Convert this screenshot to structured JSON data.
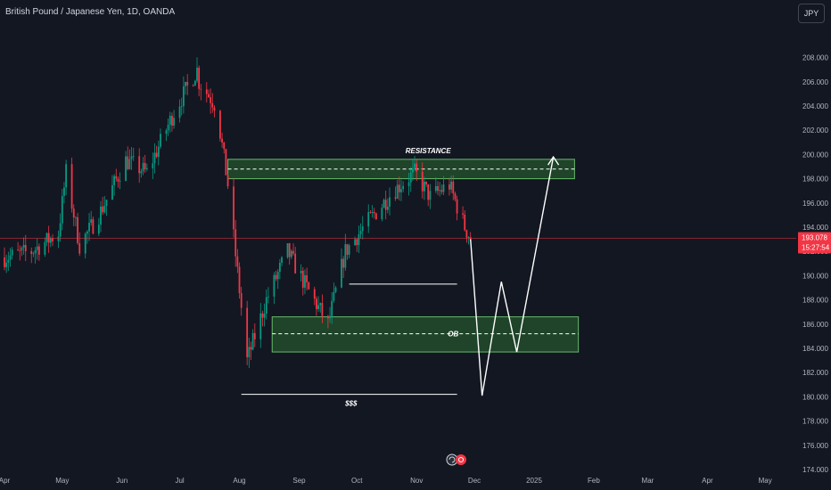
{
  "header": {
    "title": "British Pound / Japanese Yen, 1D, OANDA",
    "currency_button": "JPY"
  },
  "colors": {
    "background": "#131722",
    "up": "#089981",
    "down": "#f23645",
    "zone_fill": "#2e7d32",
    "zone_border": "#66bb6a",
    "annotation": "#ffffff",
    "price_tag": "#f23645"
  },
  "icons": [
    "replay-icon",
    "event-flag-icon"
  ],
  "chart_data": {
    "type": "candlestick",
    "title": "British Pound / Japanese Yen, 1D, OANDA",
    "xlabel": "",
    "ylabel": "",
    "ylim": [
      173.5,
      210
    ],
    "yticks": [
      "174.000",
      "176.000",
      "178.000",
      "180.000",
      "182.000",
      "184.000",
      "186.000",
      "188.000",
      "190.000",
      "192.000",
      "194.000",
      "196.000",
      "198.000",
      "200.000",
      "202.000",
      "204.000",
      "206.000",
      "208.000"
    ],
    "ytick_values": [
      174,
      176,
      178,
      180,
      182,
      184,
      186,
      188,
      190,
      192,
      194,
      196,
      198,
      200,
      202,
      204,
      206,
      208
    ],
    "xticks": [
      "Apr",
      "May",
      "Jun",
      "Jul",
      "Aug",
      "Sep",
      "Oct",
      "Nov",
      "Dec",
      "2025",
      "Feb",
      "Mar",
      "Apr",
      "May"
    ],
    "last_price": "193.078",
    "last_price_value": 193.078,
    "countdown": "15:27:54",
    "grid": false,
    "price_path": [
      [
        "2024-04-01",
        191.5
      ],
      [
        "2024-04-15",
        192.0
      ],
      [
        "2024-04-29",
        193.5
      ],
      [
        "2024-05-03",
        198.5
      ],
      [
        "2024-05-10",
        192.5
      ],
      [
        "2024-05-20",
        195.0
      ],
      [
        "2024-06-03",
        199.5
      ],
      [
        "2024-06-14",
        198.5
      ],
      [
        "2024-06-28",
        203.5
      ],
      [
        "2024-07-10",
        207.0
      ],
      [
        "2024-07-11",
        206.0
      ],
      [
        "2024-07-20",
        204.0
      ],
      [
        "2024-07-26",
        197.5
      ],
      [
        "2024-08-05",
        183.0
      ],
      [
        "2024-08-15",
        188.0
      ],
      [
        "2024-08-26",
        192.0
      ],
      [
        "2024-09-05",
        189.0
      ],
      [
        "2024-09-16",
        186.0
      ],
      [
        "2024-09-25",
        192.0
      ],
      [
        "2024-10-07",
        194.5
      ],
      [
        "2024-10-20",
        197.0
      ],
      [
        "2024-10-31",
        198.5
      ],
      [
        "2024-11-08",
        196.5
      ],
      [
        "2024-11-18",
        197.5
      ],
      [
        "2024-11-26",
        194.0
      ],
      [
        "2024-11-29",
        193.078
      ]
    ],
    "annotations": {
      "resistance_label": "RESISTANCE",
      "ob_label": "OB",
      "liquidity_label": "$$$",
      "resistance_zone": [
        198.0,
        199.6
      ],
      "resistance_mid": 198.8,
      "ob_zone": [
        183.7,
        186.6
      ],
      "ob_mid": 185.2,
      "liquidity_level": 180.2,
      "support_level": 189.3,
      "projection_path": [
        [
          "2024-11-29",
          193.0
        ],
        [
          "2024-12-05",
          180.1
        ],
        [
          "2024-12-15",
          189.5
        ],
        [
          "2024-12-23",
          183.7
        ],
        [
          "2025-01-11",
          199.8
        ]
      ]
    }
  }
}
